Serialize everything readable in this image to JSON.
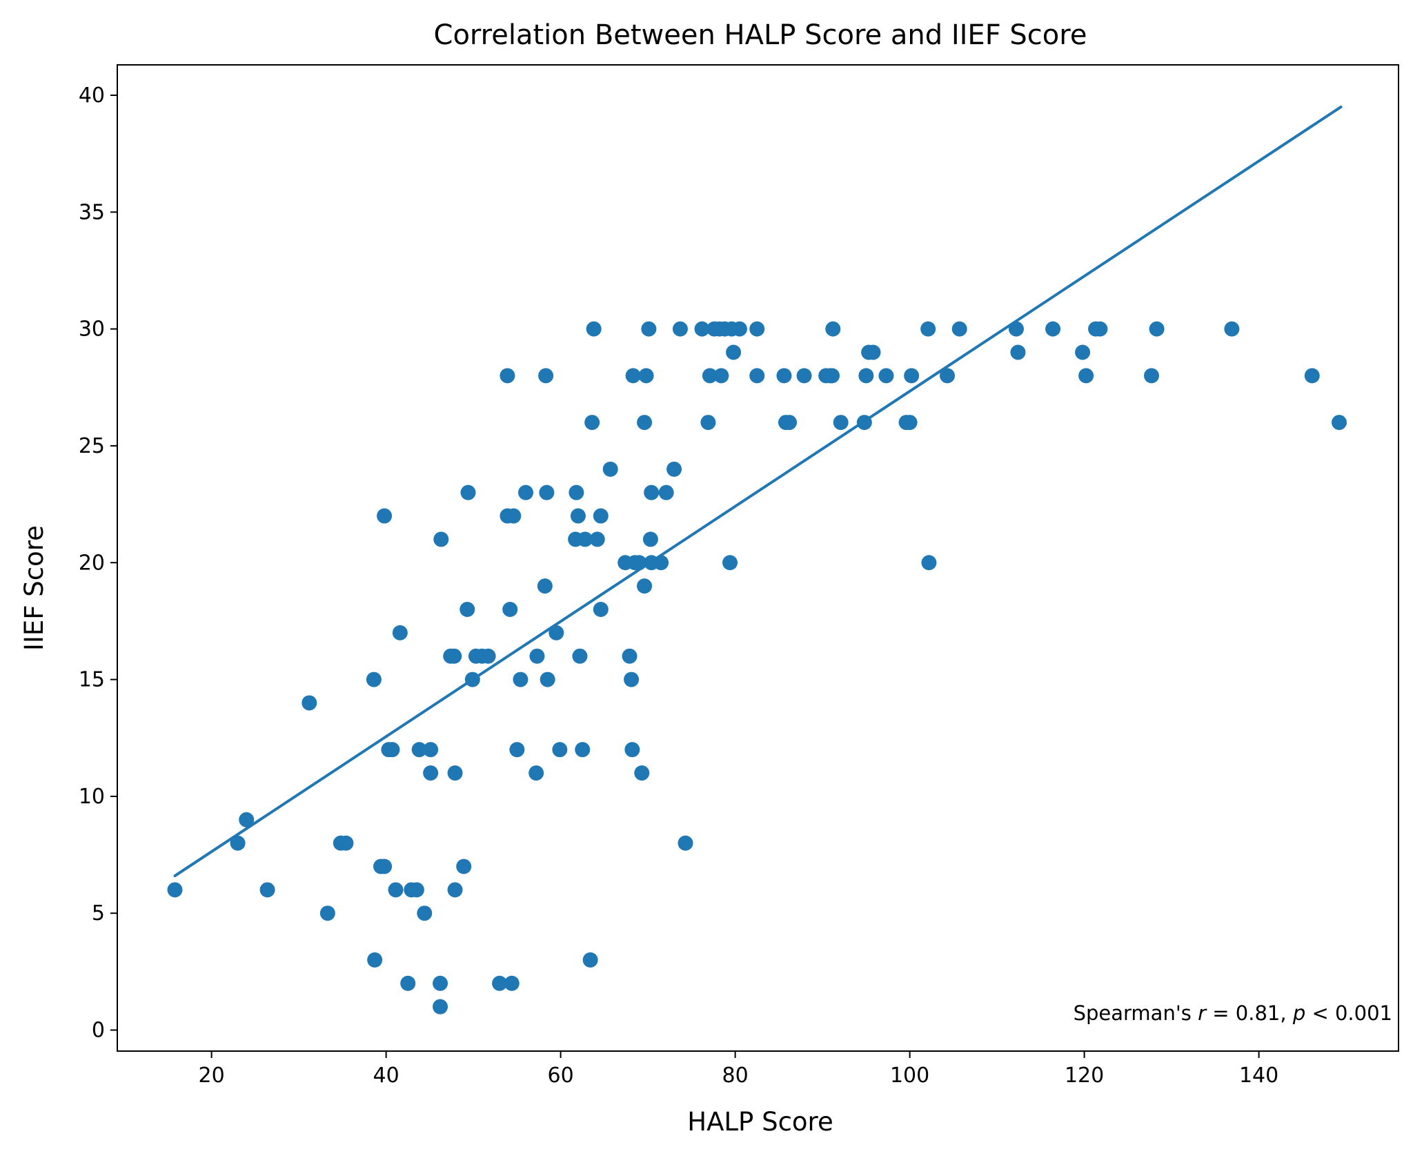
{
  "chart_data": {
    "type": "scatter",
    "title": "Correlation Between HALP Score and IIEF Score",
    "xlabel": "HALP Score",
    "ylabel": "IIEF Score",
    "xlim": [
      9.2,
      156.0
    ],
    "ylim": [
      -0.9,
      41.3
    ],
    "xticks": [
      20,
      40,
      60,
      80,
      100,
      120,
      140
    ],
    "yticks": [
      0,
      5,
      10,
      15,
      20,
      25,
      30,
      35,
      40
    ],
    "grid": false,
    "legend": false,
    "point_color": "#1f77b4",
    "line_color": "#1f77b4",
    "annotation": {
      "prefix": "Spearman's ",
      "r_symbol": "r",
      "middle": " = 0.81, ",
      "p_symbol": "p",
      "suffix": " < 0.001"
    },
    "trendline": {
      "x": [
        15.8,
        149.4
      ],
      "y": [
        6.6,
        39.5
      ]
    },
    "points": [
      [
        15.8,
        6
      ],
      [
        23.0,
        8
      ],
      [
        24.0,
        9
      ],
      [
        26.4,
        6
      ],
      [
        31.2,
        14
      ],
      [
        33.3,
        5
      ],
      [
        34.8,
        8
      ],
      [
        35.4,
        8
      ],
      [
        38.6,
        15
      ],
      [
        38.7,
        3
      ],
      [
        39.4,
        7
      ],
      [
        39.8,
        7
      ],
      [
        39.8,
        22
      ],
      [
        40.3,
        12
      ],
      [
        40.7,
        12
      ],
      [
        41.1,
        6
      ],
      [
        41.6,
        17
      ],
      [
        42.5,
        2
      ],
      [
        42.9,
        6
      ],
      [
        43.5,
        6
      ],
      [
        43.8,
        12
      ],
      [
        44.4,
        5
      ],
      [
        45.1,
        12
      ],
      [
        45.1,
        11
      ],
      [
        46.2,
        2
      ],
      [
        46.2,
        1
      ],
      [
        46.3,
        21
      ],
      [
        47.4,
        16
      ],
      [
        47.8,
        16
      ],
      [
        47.9,
        11
      ],
      [
        47.9,
        6
      ],
      [
        48.9,
        7
      ],
      [
        49.3,
        18
      ],
      [
        49.4,
        23
      ],
      [
        49.9,
        15
      ],
      [
        50.3,
        16
      ],
      [
        51.0,
        16
      ],
      [
        51.7,
        16
      ],
      [
        53.0,
        2
      ],
      [
        53.9,
        28
      ],
      [
        53.9,
        22
      ],
      [
        54.2,
        18
      ],
      [
        54.4,
        2
      ],
      [
        54.6,
        22
      ],
      [
        55.0,
        12
      ],
      [
        55.4,
        15
      ],
      [
        56.0,
        23
      ],
      [
        57.3,
        16
      ],
      [
        57.2,
        11
      ],
      [
        58.2,
        19
      ],
      [
        58.3,
        28
      ],
      [
        58.4,
        23
      ],
      [
        58.5,
        15
      ],
      [
        59.5,
        17
      ],
      [
        59.9,
        12
      ],
      [
        61.7,
        21
      ],
      [
        61.8,
        23
      ],
      [
        62.0,
        22
      ],
      [
        62.2,
        16
      ],
      [
        62.5,
        12
      ],
      [
        62.8,
        21
      ],
      [
        63.4,
        3
      ],
      [
        63.6,
        26
      ],
      [
        63.8,
        30
      ],
      [
        64.2,
        21
      ],
      [
        64.6,
        22
      ],
      [
        64.6,
        18
      ],
      [
        65.7,
        24
      ],
      [
        67.4,
        20
      ],
      [
        67.9,
        16
      ],
      [
        68.1,
        15
      ],
      [
        68.2,
        12
      ],
      [
        68.3,
        28
      ],
      [
        68.5,
        20
      ],
      [
        69.0,
        20
      ],
      [
        69.3,
        11
      ],
      [
        69.6,
        19
      ],
      [
        69.6,
        26
      ],
      [
        69.8,
        28
      ],
      [
        70.1,
        30
      ],
      [
        70.3,
        21
      ],
      [
        70.4,
        23
      ],
      [
        70.4,
        20
      ],
      [
        71.5,
        20
      ],
      [
        72.1,
        23
      ],
      [
        73.0,
        24
      ],
      [
        73.7,
        30
      ],
      [
        74.3,
        8
      ],
      [
        76.2,
        30
      ],
      [
        76.9,
        26
      ],
      [
        77.1,
        28
      ],
      [
        77.6,
        30
      ],
      [
        78.2,
        30
      ],
      [
        78.4,
        28
      ],
      [
        78.8,
        30
      ],
      [
        79.4,
        20
      ],
      [
        79.6,
        30
      ],
      [
        79.8,
        29
      ],
      [
        80.5,
        30
      ],
      [
        82.5,
        30
      ],
      [
        82.5,
        28
      ],
      [
        85.6,
        28
      ],
      [
        85.8,
        26
      ],
      [
        86.2,
        26
      ],
      [
        87.9,
        28
      ],
      [
        90.4,
        28
      ],
      [
        90.9,
        28
      ],
      [
        91.1,
        28
      ],
      [
        91.2,
        30
      ],
      [
        92.1,
        26
      ],
      [
        94.8,
        26
      ],
      [
        95.0,
        28
      ],
      [
        95.3,
        29
      ],
      [
        95.8,
        29
      ],
      [
        97.3,
        28
      ],
      [
        99.6,
        26
      ],
      [
        100.0,
        26
      ],
      [
        100.2,
        28
      ],
      [
        102.1,
        30
      ],
      [
        102.2,
        20
      ],
      [
        104.3,
        28
      ],
      [
        105.7,
        30
      ],
      [
        112.2,
        30
      ],
      [
        112.4,
        29
      ],
      [
        116.4,
        30
      ],
      [
        119.8,
        29
      ],
      [
        120.2,
        28
      ],
      [
        121.3,
        30
      ],
      [
        121.8,
        30
      ],
      [
        127.7,
        28
      ],
      [
        128.3,
        30
      ],
      [
        136.9,
        30
      ],
      [
        146.1,
        28
      ],
      [
        149.2,
        26
      ]
    ]
  }
}
